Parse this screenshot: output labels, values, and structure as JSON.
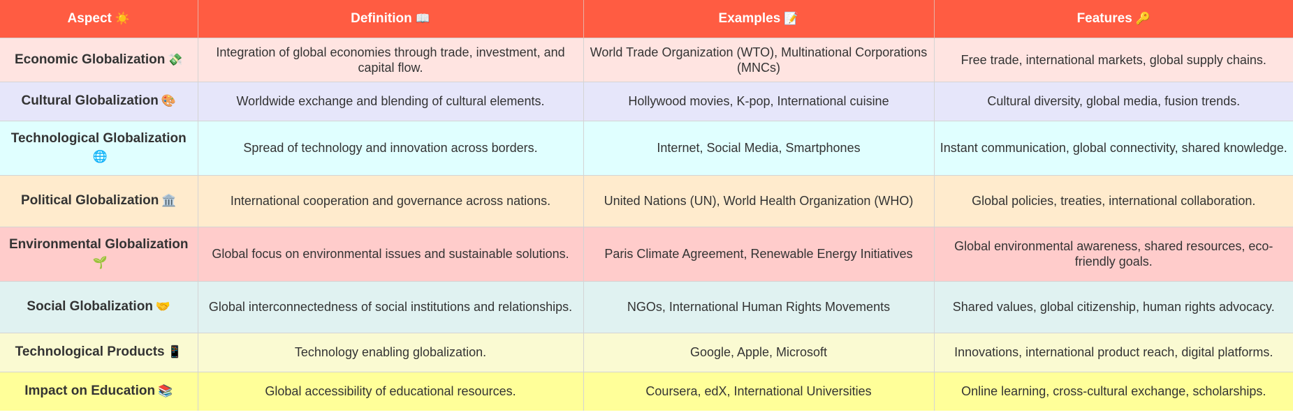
{
  "headers": [
    {
      "label": "Aspect",
      "icon": "☀️",
      "icon_name": "sun-icon"
    },
    {
      "label": "Definition",
      "icon": "📖",
      "icon_name": "open-book-icon"
    },
    {
      "label": "Examples",
      "icon": "📝",
      "icon_name": "memo-icon"
    },
    {
      "label": "Features",
      "icon": "🔑",
      "icon_name": "key-icon"
    }
  ],
  "rows": [
    {
      "aspect": "Economic Globalization",
      "icon": "💸",
      "icon_name": "money-with-wings-icon",
      "definition": "Integration of global economies through trade, investment, and capital flow.",
      "examples": "World Trade Organization (WTO), Multinational Corporations (MNCs)",
      "features": "Free trade, international markets, global supply chains.",
      "bg": "#ffe4e1"
    },
    {
      "aspect": "Cultural Globalization",
      "icon": "🎨",
      "icon_name": "artist-palette-icon",
      "definition": "Worldwide exchange and blending of cultural elements.",
      "examples": "Hollywood movies, K-pop, International cuisine",
      "features": "Cultural diversity, global media, fusion trends.",
      "bg": "#e6e6fa"
    },
    {
      "aspect": "Technological Globalization",
      "icon": "🌐",
      "icon_name": "globe-with-meridians-icon",
      "definition": "Spread of technology and innovation across borders.",
      "examples": "Internet, Social Media, Smartphones",
      "features": "Instant communication, global connectivity, shared knowledge.",
      "bg": "#e0ffff"
    },
    {
      "aspect": "Political Globalization",
      "icon": "🏛️",
      "icon_name": "classical-building-icon",
      "definition": "International cooperation and governance across nations.",
      "examples": "United Nations (UN), World Health Organization (WHO)",
      "features": "Global policies, treaties, international collaboration.",
      "bg": "#ffebcd"
    },
    {
      "aspect": "Environmental Globalization",
      "icon": "🌱",
      "icon_name": "seedling-icon",
      "definition": "Global focus on environmental issues and sustainable solutions.",
      "examples": "Paris Climate Agreement, Renewable Energy Initiatives",
      "features": "Global environmental awareness, shared resources, eco-friendly goals.",
      "bg": "#ffcccb"
    },
    {
      "aspect": "Social Globalization",
      "icon": "🤝",
      "icon_name": "handshake-icon",
      "definition": "Global interconnectedness of social institutions and relationships.",
      "examples": "NGOs, International Human Rights Movements",
      "features": "Shared values, global citizenship, human rights advocacy.",
      "bg": "#e0f2f1"
    },
    {
      "aspect": "Technological Products",
      "icon": "📱",
      "icon_name": "mobile-phone-icon",
      "definition": "Technology enabling globalization.",
      "examples": "Google, Apple, Microsoft",
      "features": "Innovations, international product reach, digital platforms.",
      "bg": "#fafad2"
    },
    {
      "aspect": "Impact on Education",
      "icon": "📚",
      "icon_name": "books-icon",
      "definition": "Global accessibility of educational resources.",
      "examples": "Coursera, edX, International Universities",
      "features": "Online learning, cross-cultural exchange, scholarships.",
      "bg": "#ffff99"
    }
  ]
}
